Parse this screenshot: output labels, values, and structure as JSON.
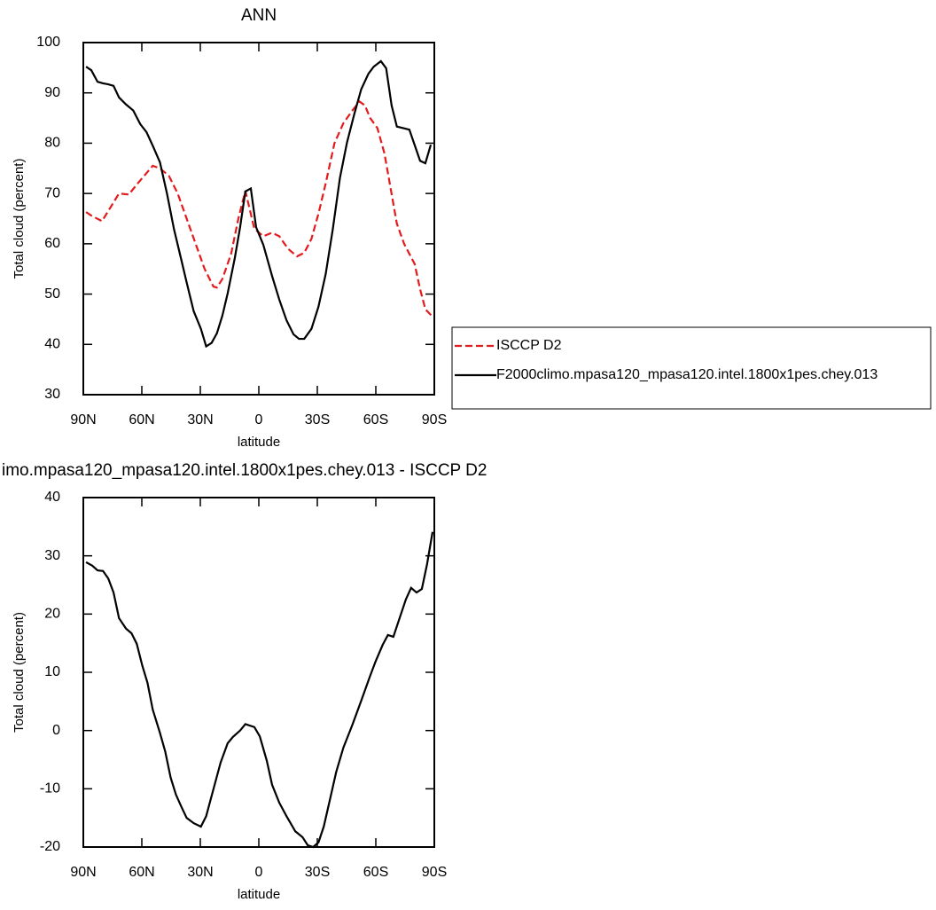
{
  "chart_data": [
    {
      "type": "line",
      "title": "ANN",
      "xlabel": "latitude",
      "ylabel": "Total cloud (percent)",
      "xlim": [
        90,
        -90
      ],
      "ylim": [
        30,
        100
      ],
      "xticks": [
        {
          "value": 90,
          "label": "90N"
        },
        {
          "value": 60,
          "label": "60N"
        },
        {
          "value": 30,
          "label": "30N"
        },
        0,
        {
          "value": -30,
          "label": "30S"
        },
        {
          "value": -60,
          "label": "60S"
        },
        {
          "value": -90,
          "label": "90S"
        }
      ],
      "yticks": [
        30,
        40,
        50,
        60,
        70,
        80,
        90,
        100
      ],
      "legend": "right",
      "series": [
        {
          "name": "ISCCP D2",
          "color": "#e41a1c",
          "line_style": "dashed",
          "x": [
            88.6,
            85.9,
            80.4,
            71.7,
            66.7,
            62.1,
            54.4,
            50.7,
            46.1,
            41.6,
            37.0,
            32.4,
            27.8,
            23.3,
            21.5,
            18.7,
            14.2,
            10.5,
            6.9,
            2.3,
            -2.3,
            -6.8,
            -10.5,
            -15.0,
            -19.6,
            -23.3,
            -27.0,
            -30.6,
            -34.3,
            -38.8,
            -43.4,
            -48.0,
            -51.6,
            -54.4,
            -57.1,
            -60.8,
            -64.4,
            -70.8,
            -74.5,
            -77.2,
            -79.9,
            -82.7,
            -85.4,
            -89.1
          ],
          "values": [
            66.3,
            65.6,
            64.5,
            70.0,
            69.8,
            72.0,
            75.5,
            75.0,
            73.5,
            70.0,
            65.0,
            60.0,
            55.0,
            51.5,
            51.3,
            53.0,
            58.0,
            65.0,
            70.5,
            63.0,
            61.5,
            62.2,
            61.5,
            59.0,
            57.5,
            58.2,
            61.0,
            66.0,
            72.0,
            80.0,
            84.0,
            86.5,
            88.3,
            87.5,
            85.0,
            83.0,
            78.0,
            64.0,
            60.0,
            58.0,
            56.0,
            51.0,
            47.0,
            45.5
          ]
        },
        {
          "name": "F2000climo.mpasa120_mpasa120.intel.1800x1pes.chey.013",
          "color": "#000000",
          "line_style": "solid",
          "x": [
            88.6,
            85.9,
            82.7,
            79.9,
            77.2,
            74.5,
            71.7,
            68.1,
            64.4,
            60.8,
            57.6,
            54.4,
            50.7,
            47.1,
            43.5,
            39.8,
            37.0,
            33.4,
            29.7,
            27.0,
            24.2,
            21.5,
            18.7,
            16.0,
            12.3,
            9.6,
            6.9,
            4.1,
            1.4,
            -2.3,
            -6.8,
            -10.5,
            -14.2,
            -17.8,
            -20.6,
            -23.3,
            -27.0,
            -30.6,
            -34.3,
            -37.9,
            -41.6,
            -45.2,
            -48.9,
            -52.5,
            -56.2,
            -58.9,
            -62.6,
            -65.3,
            -68.1,
            -70.8,
            -77.2,
            -82.7,
            -85.4,
            -88.2
          ],
          "values": [
            95.2,
            94.5,
            92.2,
            91.9,
            91.7,
            91.4,
            89.1,
            87.7,
            86.5,
            83.8,
            82.2,
            79.5,
            76.2,
            70.0,
            62.9,
            56.9,
            52.3,
            46.6,
            43.1,
            39.6,
            40.3,
            42.2,
            45.7,
            50.1,
            57.2,
            63.3,
            70.4,
            71.0,
            63.3,
            59.8,
            53.6,
            48.9,
            44.8,
            42.0,
            41.1,
            41.1,
            43.1,
            47.5,
            54.0,
            62.8,
            73.1,
            80.1,
            85.7,
            90.7,
            93.8,
            95.2,
            96.3,
            94.9,
            87.5,
            83.3,
            82.7,
            76.5,
            76.0,
            79.7
          ]
        }
      ]
    },
    {
      "type": "line",
      "title": "imo.mpasa120_mpasa120.intel.1800x1pes.chey.013 - ISCCP D2",
      "xlabel": "latitude",
      "ylabel": "Total cloud (percent)",
      "xlim": [
        90,
        -90
      ],
      "ylim": [
        -20,
        40
      ],
      "xticks": [
        {
          "value": 90,
          "label": "90N"
        },
        {
          "value": 60,
          "label": "60N"
        },
        {
          "value": 30,
          "label": "30N"
        },
        0,
        {
          "value": -30,
          "label": "30S"
        },
        {
          "value": -60,
          "label": "60S"
        },
        {
          "value": -90,
          "label": "90S"
        }
      ],
      "yticks": [
        -20,
        -10,
        0,
        10,
        20,
        30,
        40
      ],
      "series": [
        {
          "color": "#000000",
          "line_style": "solid",
          "x": [
            88.6,
            85.4,
            82.7,
            79.9,
            77.2,
            74.5,
            71.7,
            68.1,
            65.3,
            62.6,
            59.8,
            57.1,
            54.4,
            50.7,
            48.0,
            45.2,
            42.5,
            39.7,
            37.0,
            33.4,
            29.7,
            27.0,
            23.3,
            19.6,
            16.0,
            13.3,
            9.6,
            6.9,
            2.3,
            -0.5,
            -4.1,
            -6.8,
            -10.5,
            -14.2,
            -18.7,
            -22.4,
            -25.1,
            -27.9,
            -30.6,
            -33.3,
            -36.1,
            -39.7,
            -43.4,
            -48.0,
            -52.5,
            -57.1,
            -59.8,
            -63.5,
            -66.2,
            -69.0,
            -71.7,
            -75.4,
            -78.1,
            -80.9,
            -83.6,
            -86.3,
            -89.1
          ],
          "values": [
            28.9,
            28.3,
            27.5,
            27.4,
            26.1,
            23.7,
            19.3,
            17.5,
            16.7,
            14.9,
            11.2,
            8.2,
            3.6,
            -0.4,
            -3.6,
            -8.1,
            -11.0,
            -13.1,
            -15.0,
            -15.9,
            -16.5,
            -14.7,
            -10.1,
            -5.5,
            -2.2,
            -1.1,
            0.0,
            1.1,
            0.6,
            -1.0,
            -5.2,
            -9.3,
            -12.4,
            -14.7,
            -17.3,
            -18.3,
            -19.7,
            -20.0,
            -19.2,
            -16.5,
            -12.4,
            -7.1,
            -2.9,
            1.0,
            5.1,
            9.4,
            11.8,
            14.7,
            16.4,
            16.1,
            18.8,
            22.5,
            24.5,
            23.7,
            24.3,
            28.6,
            34.1
          ]
        }
      ]
    }
  ]
}
